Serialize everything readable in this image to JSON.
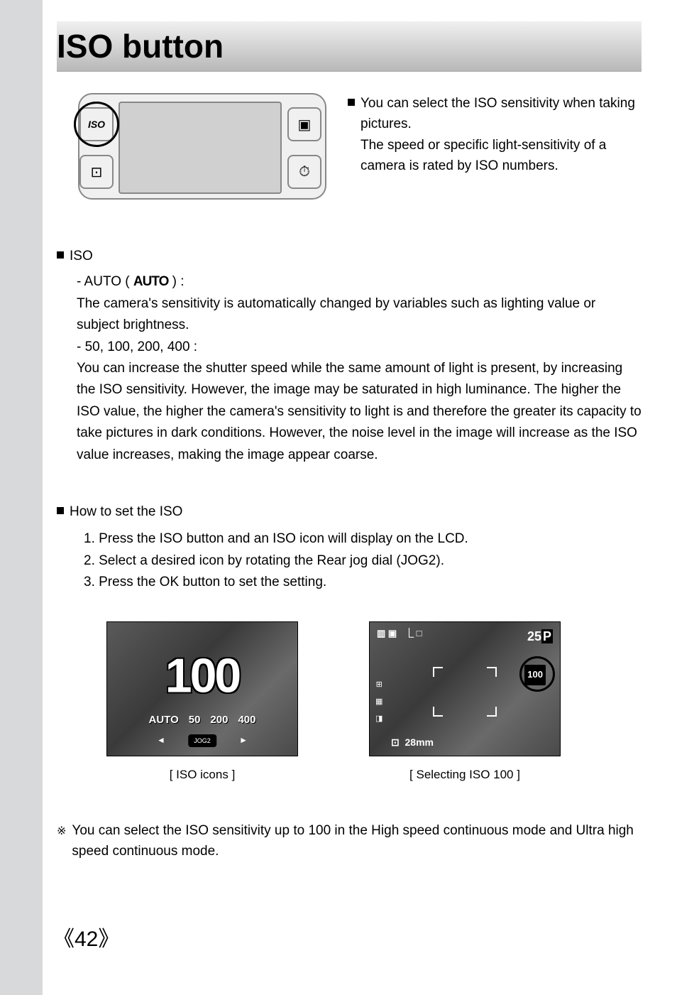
{
  "title": "ISO button",
  "camera": {
    "iso_label": "ISO"
  },
  "intro": {
    "line1": "You can select the ISO sensitivity when taking pictures.",
    "line2": "The speed or specific light-sensitivity of a camera is rated by ISO numbers."
  },
  "iso": {
    "head": "ISO",
    "auto_prefix": "- AUTO (",
    "auto_word": "AUTO",
    "auto_suffix": ") :",
    "auto_desc": "The camera's sensitivity is automatically changed by variables such as lighting value or subject brightness.",
    "vals_head": "- 50, 100, 200, 400 :",
    "vals_desc": "You can increase the shutter speed while the same amount of light is present, by increasing the ISO sensitivity. However, the image may be saturated in high luminance. The higher the ISO value, the higher the camera's sensitivity to light is and therefore the greater its capacity to take pictures in dark conditions. However, the noise level in the image will increase as the ISO value increases, making the image appear coarse."
  },
  "howto": {
    "head": "How to set the ISO",
    "step1": "1. Press the ISO button and an ISO icon will display on the LCD.",
    "step2": "2. Select a desired icon by rotating the Rear jog dial (JOG2).",
    "step3": "3. Press the OK button to set the setting."
  },
  "fig1": {
    "big": "100",
    "opt1": "AUTO",
    "opt2": "50",
    "opt3": "200",
    "opt4": "400",
    "jog": "JOG2",
    "caption": "[ ISO icons ]"
  },
  "fig2": {
    "shots": "25",
    "mode": "P",
    "iso": "100",
    "focal": "28mm",
    "caption": "[ Selecting ISO 100 ]"
  },
  "note": "You can select the ISO sensitivity up to 100 in the High speed continuous mode and Ultra high speed continuous mode.",
  "page": "42",
  "colors": {
    "strip": "#d8d9da",
    "title_grad_top": "#f0f0f0",
    "title_grad_bot": "#b8b8b8"
  }
}
